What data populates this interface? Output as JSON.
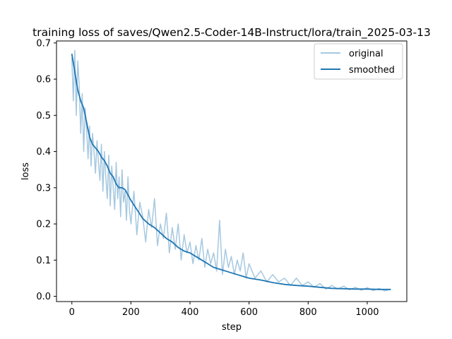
{
  "chart_data": {
    "type": "line",
    "title": "training loss of saves/Qwen2.5-Coder-14B-Instruct/lora/train_2025-03-13",
    "xlabel": "step",
    "ylabel": "loss",
    "xlim": [
      -52,
      1134
    ],
    "ylim": [
      -0.0145,
      0.7055
    ],
    "xticks": [
      0,
      200,
      400,
      600,
      800,
      1000
    ],
    "yticks": [
      0.0,
      0.1,
      0.2,
      0.3,
      0.4,
      0.5,
      0.6,
      0.7
    ],
    "xtick_labels": [
      "0",
      "200",
      "400",
      "600",
      "800",
      "1000"
    ],
    "ytick_labels": [
      "0.0",
      "0.1",
      "0.2",
      "0.3",
      "0.4",
      "0.5",
      "0.6",
      "0.7"
    ],
    "grid": false,
    "legend_position": "upper right",
    "series": [
      {
        "name": "original",
        "color": "#a6c8e0",
        "x": [
          0,
          5,
          10,
          15,
          20,
          25,
          30,
          35,
          40,
          45,
          50,
          55,
          60,
          65,
          70,
          75,
          80,
          85,
          90,
          95,
          100,
          105,
          110,
          115,
          120,
          125,
          130,
          135,
          140,
          145,
          150,
          155,
          160,
          165,
          170,
          175,
          180,
          185,
          190,
          195,
          200,
          210,
          220,
          230,
          240,
          250,
          260,
          270,
          280,
          290,
          300,
          310,
          320,
          330,
          340,
          350,
          360,
          370,
          380,
          390,
          400,
          410,
          420,
          430,
          440,
          450,
          460,
          470,
          480,
          490,
          500,
          510,
          520,
          530,
          540,
          550,
          560,
          570,
          580,
          590,
          600,
          620,
          640,
          660,
          680,
          700,
          720,
          740,
          760,
          780,
          800,
          820,
          840,
          860,
          880,
          900,
          920,
          940,
          960,
          980,
          1000,
          1020,
          1040,
          1060,
          1080
        ],
        "y": [
          0.66,
          0.54,
          0.68,
          0.5,
          0.65,
          0.58,
          0.45,
          0.56,
          0.4,
          0.52,
          0.46,
          0.38,
          0.47,
          0.36,
          0.45,
          0.4,
          0.34,
          0.43,
          0.37,
          0.32,
          0.42,
          0.29,
          0.4,
          0.33,
          0.27,
          0.39,
          0.25,
          0.36,
          0.3,
          0.24,
          0.37,
          0.27,
          0.33,
          0.22,
          0.35,
          0.26,
          0.29,
          0.21,
          0.33,
          0.24,
          0.2,
          0.29,
          0.17,
          0.26,
          0.22,
          0.15,
          0.24,
          0.19,
          0.27,
          0.14,
          0.2,
          0.16,
          0.23,
          0.12,
          0.19,
          0.13,
          0.2,
          0.1,
          0.17,
          0.12,
          0.15,
          0.09,
          0.14,
          0.1,
          0.16,
          0.08,
          0.13,
          0.09,
          0.12,
          0.07,
          0.21,
          0.06,
          0.13,
          0.08,
          0.11,
          0.06,
          0.1,
          0.07,
          0.12,
          0.05,
          0.09,
          0.05,
          0.07,
          0.04,
          0.06,
          0.04,
          0.05,
          0.03,
          0.05,
          0.03,
          0.04,
          0.025,
          0.035,
          0.02,
          0.03,
          0.02,
          0.028,
          0.018,
          0.025,
          0.017,
          0.024,
          0.016,
          0.022,
          0.015,
          0.02
        ]
      },
      {
        "name": "smoothed",
        "color": "#1f77b4",
        "x": [
          0,
          10,
          20,
          30,
          40,
          50,
          60,
          70,
          80,
          90,
          100,
          110,
          120,
          130,
          140,
          150,
          160,
          170,
          180,
          190,
          200,
          220,
          240,
          260,
          280,
          300,
          320,
          340,
          360,
          380,
          400,
          420,
          440,
          460,
          480,
          500,
          520,
          540,
          560,
          580,
          600,
          640,
          680,
          720,
          760,
          800,
          840,
          880,
          920,
          960,
          1000,
          1040,
          1080
        ],
        "y": [
          0.67,
          0.62,
          0.57,
          0.54,
          0.52,
          0.48,
          0.44,
          0.42,
          0.41,
          0.4,
          0.385,
          0.375,
          0.36,
          0.34,
          0.33,
          0.31,
          0.3,
          0.3,
          0.295,
          0.28,
          0.265,
          0.24,
          0.215,
          0.2,
          0.19,
          0.175,
          0.16,
          0.15,
          0.135,
          0.125,
          0.12,
          0.11,
          0.1,
          0.09,
          0.08,
          0.075,
          0.07,
          0.065,
          0.06,
          0.055,
          0.05,
          0.045,
          0.038,
          0.033,
          0.03,
          0.028,
          0.025,
          0.022,
          0.021,
          0.02,
          0.02,
          0.019,
          0.019
        ]
      }
    ]
  }
}
